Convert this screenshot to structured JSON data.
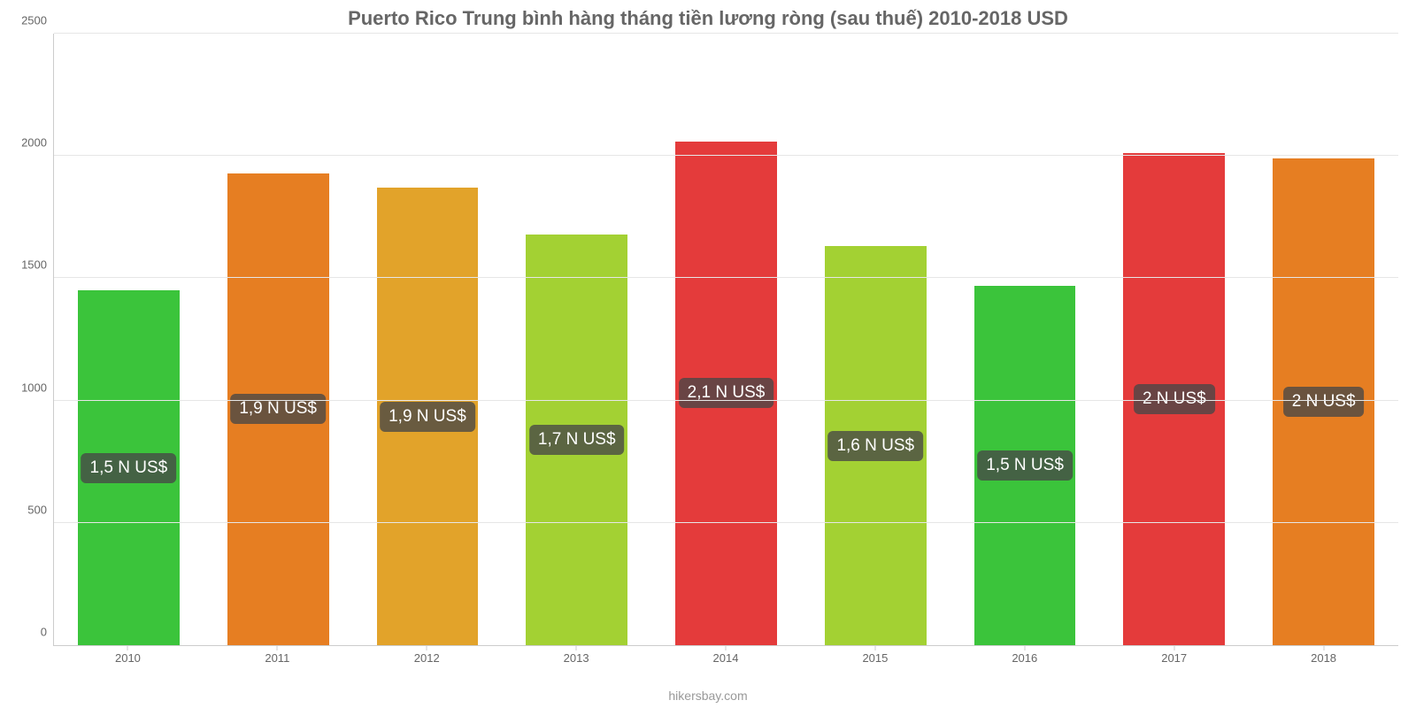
{
  "chart": {
    "type": "bar",
    "title": "Puerto Rico Trung bình hàng tháng tiền lương ròng (sau thuế) 2010-2018 USD",
    "title_fontsize": 22,
    "title_color": "#666666",
    "attribution": "hikersbay.com",
    "attribution_color": "#999999",
    "background_color": "#ffffff",
    "grid_color": "#e6e6e6",
    "axis_color": "#cccccc",
    "tick_label_color": "#666666",
    "tick_label_fontsize": 13,
    "bar_width_ratio": 0.68,
    "ylim": [
      0,
      2500
    ],
    "ytick_step": 500,
    "yticks": [
      {
        "value": 0,
        "label": "0"
      },
      {
        "value": 500,
        "label": "500"
      },
      {
        "value": 1000,
        "label": "1000"
      },
      {
        "value": 1500,
        "label": "1500"
      },
      {
        "value": 2000,
        "label": "2000"
      },
      {
        "value": 2500,
        "label": "2500"
      }
    ],
    "bar_label_bg": "rgba(70,70,70,0.78)",
    "bar_label_color": "#ffffff",
    "bar_label_fontsize": 19,
    "bars": [
      {
        "category": "2010",
        "value": 1450,
        "label": "1,5 N US$",
        "color": "#3bc43b"
      },
      {
        "category": "2011",
        "value": 1930,
        "label": "1,9 N US$",
        "color": "#e67e22"
      },
      {
        "category": "2012",
        "value": 1870,
        "label": "1,9 N US$",
        "color": "#e2a32a"
      },
      {
        "category": "2013",
        "value": 1680,
        "label": "1,7 N US$",
        "color": "#a3d133"
      },
      {
        "category": "2014",
        "value": 2060,
        "label": "2,1 N US$",
        "color": "#e43b3b"
      },
      {
        "category": "2015",
        "value": 1630,
        "label": "1,6 N US$",
        "color": "#a3d133"
      },
      {
        "category": "2016",
        "value": 1470,
        "label": "1,5 N US$",
        "color": "#3bc43b"
      },
      {
        "category": "2017",
        "value": 2010,
        "label": "2 N US$",
        "color": "#e43b3b"
      },
      {
        "category": "2018",
        "value": 1990,
        "label": "2 N US$",
        "color": "#e67e22"
      }
    ]
  }
}
